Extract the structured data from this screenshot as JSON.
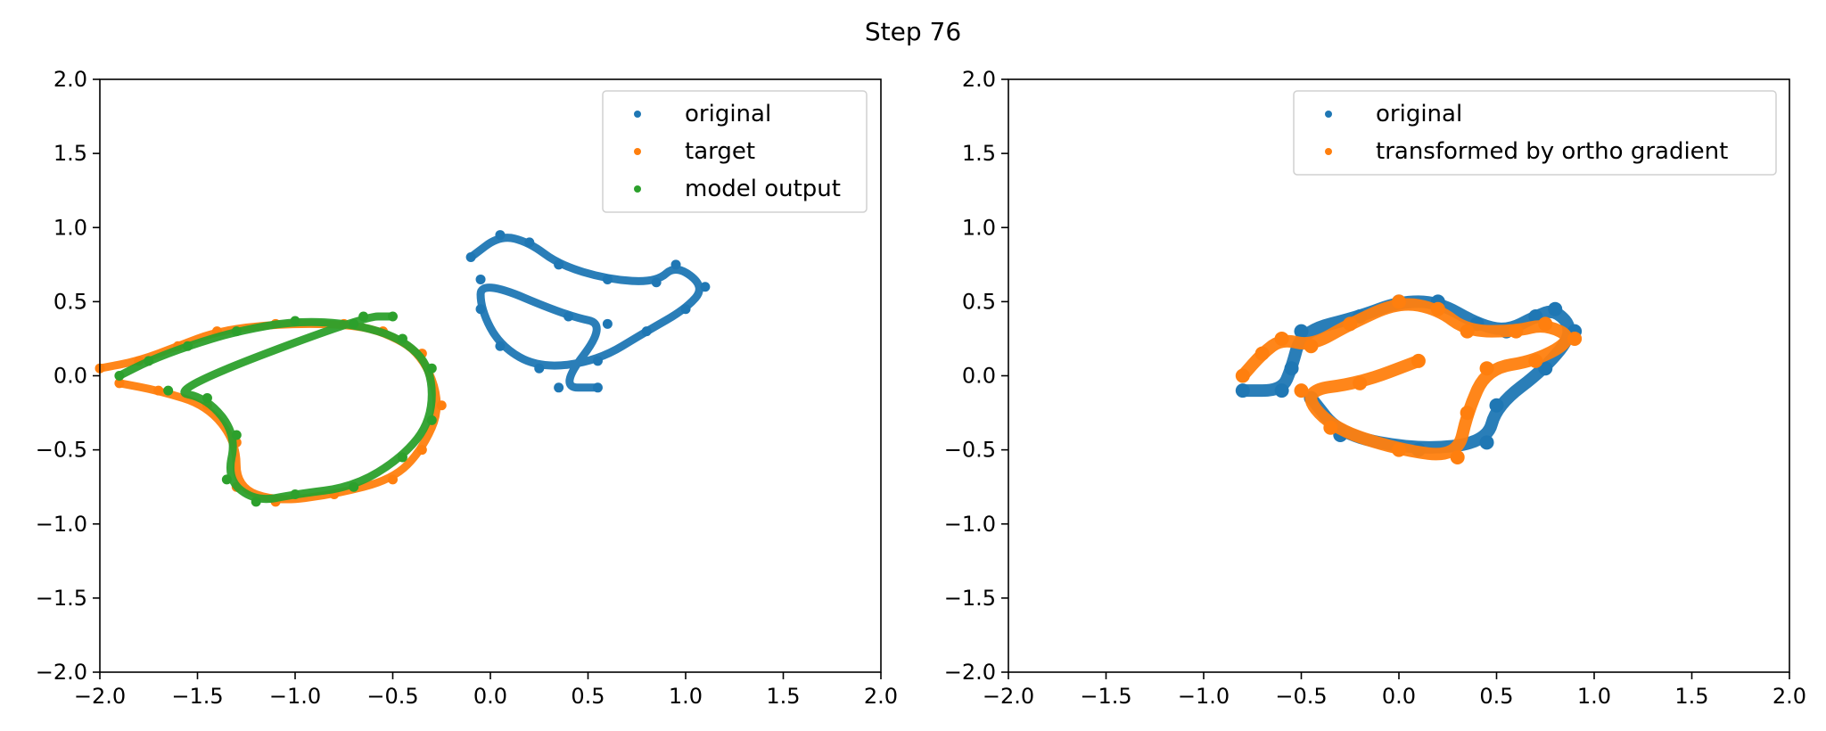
{
  "figure": {
    "title": "Step 76"
  },
  "colors": {
    "blue": "#1f77b4",
    "orange": "#ff7f0e",
    "green": "#2ca02c"
  },
  "chart_data": [
    {
      "type": "scatter",
      "xlim": [
        -2.0,
        2.0
      ],
      "ylim": [
        -2.0,
        2.0
      ],
      "xticks": [
        "−2.0",
        "−1.5",
        "−1.0",
        "−0.5",
        "0.0",
        "0.5",
        "1.0",
        "1.5",
        "2.0"
      ],
      "yticks": [
        "−2.0",
        "−1.5",
        "−1.0",
        "−0.5",
        "0.0",
        "0.5",
        "1.0",
        "1.5",
        "2.0"
      ],
      "legend_position": "upper right",
      "series": [
        {
          "name": "original",
          "color": "#1f77b4",
          "shape": "chicken",
          "points": [
            [
              -0.1,
              0.8
            ],
            [
              0.05,
              0.95
            ],
            [
              0.2,
              0.9
            ],
            [
              0.35,
              0.75
            ],
            [
              0.6,
              0.65
            ],
            [
              0.85,
              0.63
            ],
            [
              0.95,
              0.75
            ],
            [
              1.1,
              0.6
            ],
            [
              1.0,
              0.45
            ],
            [
              0.8,
              0.3
            ],
            [
              0.55,
              0.1
            ],
            [
              0.25,
              0.05
            ],
            [
              0.05,
              0.2
            ],
            [
              -0.05,
              0.45
            ],
            [
              -0.05,
              0.65
            ],
            [
              0.4,
              0.4
            ],
            [
              0.6,
              0.35
            ],
            [
              0.35,
              -0.08
            ],
            [
              0.55,
              -0.08
            ]
          ]
        },
        {
          "name": "target",
          "color": "#ff7f0e",
          "shape": "rotated chicken",
          "points": [
            [
              -2.0,
              0.05
            ],
            [
              -1.8,
              0.1
            ],
            [
              -1.6,
              0.2
            ],
            [
              -1.4,
              0.3
            ],
            [
              -1.1,
              0.35
            ],
            [
              -0.75,
              0.35
            ],
            [
              -0.55,
              0.3
            ],
            [
              -0.35,
              0.15
            ],
            [
              -0.25,
              -0.2
            ],
            [
              -0.35,
              -0.5
            ],
            [
              -0.5,
              -0.7
            ],
            [
              -0.8,
              -0.8
            ],
            [
              -1.1,
              -0.85
            ],
            [
              -1.3,
              -0.75
            ],
            [
              -1.3,
              -0.45
            ],
            [
              -1.45,
              -0.2
            ],
            [
              -1.7,
              -0.1
            ],
            [
              -1.9,
              -0.05
            ]
          ]
        },
        {
          "name": "model output",
          "color": "#2ca02c",
          "shape": "rotated chicken",
          "points": [
            [
              -1.9,
              0.0
            ],
            [
              -1.75,
              0.1
            ],
            [
              -1.55,
              0.2
            ],
            [
              -1.3,
              0.3
            ],
            [
              -1.0,
              0.37
            ],
            [
              -0.7,
              0.35
            ],
            [
              -0.45,
              0.25
            ],
            [
              -0.3,
              0.05
            ],
            [
              -0.3,
              -0.3
            ],
            [
              -0.45,
              -0.55
            ],
            [
              -0.7,
              -0.75
            ],
            [
              -1.0,
              -0.8
            ],
            [
              -1.2,
              -0.85
            ],
            [
              -1.35,
              -0.7
            ],
            [
              -1.3,
              -0.4
            ],
            [
              -1.45,
              -0.15
            ],
            [
              -1.65,
              -0.1
            ],
            [
              -0.65,
              0.4
            ],
            [
              -0.5,
              0.4
            ]
          ]
        }
      ]
    },
    {
      "type": "scatter",
      "xlim": [
        -2.0,
        2.0
      ],
      "ylim": [
        -2.0,
        2.0
      ],
      "xticks": [
        "−2.0",
        "−1.5",
        "−1.0",
        "−0.5",
        "0.0",
        "0.5",
        "1.0",
        "1.5",
        "2.0"
      ],
      "yticks": [
        "−2.0",
        "−1.5",
        "−1.0",
        "−0.5",
        "0.0",
        "0.5",
        "1.0",
        "1.5",
        "2.0"
      ],
      "legend_position": "upper right",
      "series": [
        {
          "name": "original",
          "color": "#1f77b4",
          "points": [
            [
              -0.8,
              -0.1
            ],
            [
              -0.6,
              -0.1
            ],
            [
              -0.55,
              0.05
            ],
            [
              -0.5,
              0.3
            ],
            [
              -0.2,
              0.4
            ],
            [
              0.0,
              0.5
            ],
            [
              0.2,
              0.5
            ],
            [
              0.4,
              0.35
            ],
            [
              0.55,
              0.3
            ],
            [
              0.7,
              0.4
            ],
            [
              0.8,
              0.45
            ],
            [
              0.9,
              0.3
            ],
            [
              0.75,
              0.05
            ],
            [
              0.5,
              -0.2
            ],
            [
              0.45,
              -0.45
            ],
            [
              0.1,
              -0.5
            ],
            [
              -0.3,
              -0.4
            ],
            [
              -0.45,
              -0.15
            ]
          ]
        },
        {
          "name": "transformed by ortho gradient",
          "color": "#ff7f0e",
          "points": [
            [
              -0.8,
              0.0
            ],
            [
              -0.7,
              0.15
            ],
            [
              -0.6,
              0.25
            ],
            [
              -0.45,
              0.2
            ],
            [
              -0.25,
              0.35
            ],
            [
              0.0,
              0.5
            ],
            [
              0.2,
              0.45
            ],
            [
              0.35,
              0.3
            ],
            [
              0.6,
              0.3
            ],
            [
              0.75,
              0.35
            ],
            [
              0.9,
              0.25
            ],
            [
              0.7,
              0.1
            ],
            [
              0.45,
              0.05
            ],
            [
              0.35,
              -0.25
            ],
            [
              0.3,
              -0.55
            ],
            [
              0.0,
              -0.5
            ],
            [
              -0.35,
              -0.35
            ],
            [
              -0.5,
              -0.1
            ],
            [
              -0.2,
              -0.05
            ],
            [
              0.1,
              0.1
            ]
          ]
        }
      ]
    }
  ]
}
